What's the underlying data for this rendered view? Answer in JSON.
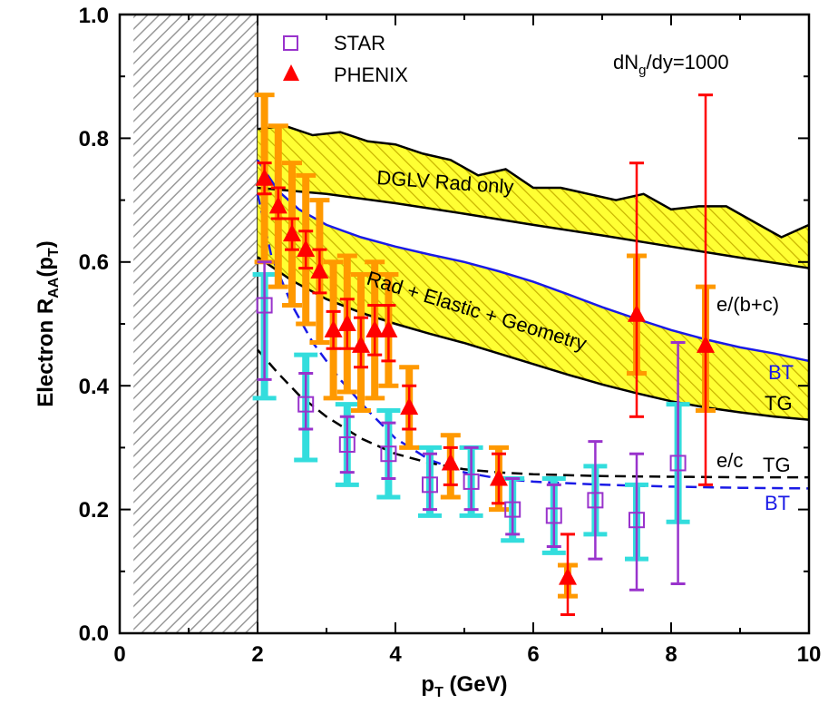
{
  "chart_data": {
    "type": "scatter",
    "xlabel": "p",
    "xlabel_sub": "T",
    "xlabel_unit": " (GeV)",
    "ylabel": "Electron R",
    "ylabel_sub": "AA",
    "ylabel_arg": "(p",
    "ylabel_arg_sub": "T",
    "ylabel_close": ")",
    "xlim": [
      0,
      10
    ],
    "ylim": [
      0,
      1.0
    ],
    "x_ticks": [
      "0",
      "2",
      "4",
      "6",
      "8",
      "10"
    ],
    "y_ticks": [
      "0.0",
      "0.2",
      "0.4",
      "0.6",
      "0.8",
      "1.0"
    ],
    "excluded_region": [
      0.2,
      2.0
    ],
    "legend": {
      "star": "STAR",
      "phenix": "PHENIX",
      "star_color": "#9933cc",
      "phenix_color": "#ff0000"
    },
    "annotations": {
      "density_main": "dN",
      "density_sub": "g",
      "density_rest": "/dy=1000",
      "dglv": "DGLV Rad only",
      "rad_elastic": "Rad + Elastic + Geometry",
      "e_bc": "e/(b+c)",
      "e_c": "e/c",
      "bt_upper": "BT",
      "tg_upper": "TG",
      "tg_lower": "TG",
      "bt_lower": "BT"
    },
    "colors": {
      "band_fill": "#ffff33",
      "band_hatch": "#c8b400",
      "blue": "#1a1ae6",
      "black": "#000000",
      "star_sys": "#33dddd",
      "phenix_sys": "#ff9900",
      "grey_hatch": "#999999"
    },
    "series": [
      {
        "name": "DGLV Rad only band upper",
        "x": [
          2.0,
          2.4,
          2.8,
          3.2,
          3.6,
          4.0,
          4.4,
          4.8,
          5.2,
          5.6,
          6.0,
          6.4,
          6.8,
          7.2,
          7.6,
          8.0,
          8.4,
          8.8,
          9.2,
          9.6,
          10.0
        ],
        "y": [
          0.815,
          0.82,
          0.805,
          0.81,
          0.795,
          0.79,
          0.775,
          0.765,
          0.74,
          0.75,
          0.72,
          0.72,
          0.71,
          0.7,
          0.71,
          0.685,
          0.69,
          0.69,
          0.665,
          0.64,
          0.66
        ]
      },
      {
        "name": "DGLV Rad only band lower",
        "x": [
          2.0,
          3.0,
          4.0,
          5.0,
          6.0,
          7.0,
          8.0,
          9.0,
          10.0
        ],
        "y": [
          0.72,
          0.71,
          0.695,
          0.678,
          0.66,
          0.643,
          0.625,
          0.607,
          0.59
        ]
      },
      {
        "name": "e/(b+c) BT",
        "x": [
          2.0,
          2.3,
          2.6,
          3.0,
          3.5,
          4.0,
          4.5,
          5.0,
          5.5,
          6.0,
          6.5,
          7.0,
          7.5,
          8.0,
          8.5,
          9.0,
          9.5,
          10.0
        ],
        "y": [
          0.765,
          0.715,
          0.685,
          0.66,
          0.64,
          0.625,
          0.612,
          0.6,
          0.585,
          0.568,
          0.548,
          0.527,
          0.508,
          0.49,
          0.475,
          0.462,
          0.452,
          0.44
        ]
      },
      {
        "name": "e/(b+c) TG",
        "x": [
          2.0,
          2.5,
          3.0,
          3.5,
          4.0,
          4.5,
          5.0,
          5.5,
          6.0,
          6.5,
          7.0,
          7.5,
          8.0,
          8.5,
          9.0,
          9.5,
          10.0
        ],
        "y": [
          0.608,
          0.57,
          0.54,
          0.518,
          0.5,
          0.484,
          0.469,
          0.452,
          0.435,
          0.418,
          0.402,
          0.388,
          0.375,
          0.365,
          0.357,
          0.35,
          0.345
        ]
      },
      {
        "name": "e/c BT",
        "x": [
          2.0,
          2.2,
          2.5,
          2.8,
          3.2,
          3.6,
          4.0,
          4.5,
          5.0,
          5.5,
          6.0,
          7.0,
          8.0,
          9.0,
          10.0
        ],
        "y": [
          0.71,
          0.61,
          0.53,
          0.47,
          0.41,
          0.36,
          0.315,
          0.28,
          0.26,
          0.25,
          0.245,
          0.24,
          0.237,
          0.235,
          0.234
        ]
      },
      {
        "name": "e/c TG",
        "x": [
          2.0,
          2.3,
          2.6,
          3.0,
          3.5,
          4.0,
          4.5,
          5.0,
          5.5,
          6.0,
          7.0,
          8.0,
          9.0,
          10.0
        ],
        "y": [
          0.458,
          0.42,
          0.385,
          0.35,
          0.315,
          0.29,
          0.275,
          0.265,
          0.26,
          0.257,
          0.254,
          0.253,
          0.252,
          0.252
        ]
      }
    ],
    "star": [
      {
        "x": 2.1,
        "y": 0.53,
        "stat": [
          0.41,
          0.6
        ],
        "sys": [
          0.38,
          0.58
        ]
      },
      {
        "x": 2.7,
        "y": 0.37,
        "stat": [
          0.33,
          0.42
        ],
        "sys": [
          0.28,
          0.45
        ]
      },
      {
        "x": 3.3,
        "y": 0.305,
        "stat": [
          0.26,
          0.35
        ],
        "sys": [
          0.24,
          0.37
        ]
      },
      {
        "x": 3.9,
        "y": 0.29,
        "stat": [
          0.25,
          0.34
        ],
        "sys": [
          0.22,
          0.36
        ]
      },
      {
        "x": 4.5,
        "y": 0.24,
        "stat": [
          0.2,
          0.29
        ],
        "sys": [
          0.19,
          0.3
        ]
      },
      {
        "x": 5.1,
        "y": 0.245,
        "stat": [
          0.2,
          0.3
        ],
        "sys": [
          0.19,
          0.3
        ]
      },
      {
        "x": 5.7,
        "y": 0.2,
        "stat": [
          0.16,
          0.25
        ],
        "sys": [
          0.15,
          0.25
        ]
      },
      {
        "x": 6.3,
        "y": 0.19,
        "stat": [
          0.14,
          0.24
        ],
        "sys": [
          0.13,
          0.25
        ]
      },
      {
        "x": 6.9,
        "y": 0.215,
        "stat": [
          0.12,
          0.31
        ],
        "sys": [
          0.16,
          0.27
        ]
      },
      {
        "x": 7.5,
        "y": 0.183,
        "stat": [
          0.07,
          0.29
        ],
        "sys": [
          0.12,
          0.24
        ]
      },
      {
        "x": 8.1,
        "y": 0.275,
        "stat": [
          0.08,
          0.47
        ],
        "sys": [
          0.18,
          0.37
        ]
      }
    ],
    "phenix": [
      {
        "x": 2.1,
        "y": 0.735,
        "stat": [
          0.71,
          0.76
        ],
        "sys": [
          0.6,
          0.87
        ]
      },
      {
        "x": 2.3,
        "y": 0.69,
        "stat": [
          0.67,
          0.72
        ],
        "sys": [
          0.56,
          0.82
        ]
      },
      {
        "x": 2.5,
        "y": 0.645,
        "stat": [
          0.62,
          0.67
        ],
        "sys": [
          0.53,
          0.76
        ]
      },
      {
        "x": 2.7,
        "y": 0.62,
        "stat": [
          0.59,
          0.65
        ],
        "sys": [
          0.5,
          0.74
        ]
      },
      {
        "x": 2.9,
        "y": 0.585,
        "stat": [
          0.55,
          0.62
        ],
        "sys": [
          0.47,
          0.7
        ]
      },
      {
        "x": 3.1,
        "y": 0.49,
        "stat": [
          0.46,
          0.52
        ],
        "sys": [
          0.38,
          0.6
        ]
      },
      {
        "x": 3.3,
        "y": 0.5,
        "stat": [
          0.46,
          0.54
        ],
        "sys": [
          0.39,
          0.61
        ]
      },
      {
        "x": 3.5,
        "y": 0.465,
        "stat": [
          0.43,
          0.51
        ],
        "sys": [
          0.36,
          0.58
        ]
      },
      {
        "x": 3.7,
        "y": 0.49,
        "stat": [
          0.45,
          0.53
        ],
        "sys": [
          0.38,
          0.6
        ]
      },
      {
        "x": 3.9,
        "y": 0.49,
        "stat": [
          0.44,
          0.53
        ],
        "sys": [
          0.4,
          0.58
        ]
      },
      {
        "x": 4.2,
        "y": 0.365,
        "stat": [
          0.33,
          0.4
        ],
        "sys": [
          0.3,
          0.43
        ]
      },
      {
        "x": 4.8,
        "y": 0.275,
        "stat": [
          0.24,
          0.3
        ],
        "sys": [
          0.22,
          0.32
        ]
      },
      {
        "x": 5.5,
        "y": 0.25,
        "stat": [
          0.21,
          0.29
        ],
        "sys": [
          0.2,
          0.3
        ]
      },
      {
        "x": 6.5,
        "y": 0.09,
        "stat": [
          0.03,
          0.16
        ],
        "sys": [
          0.06,
          0.11
        ]
      },
      {
        "x": 7.5,
        "y": 0.515,
        "stat": [
          0.35,
          0.76
        ],
        "sys": [
          0.42,
          0.61
        ]
      },
      {
        "x": 8.5,
        "y": 0.465,
        "stat": [
          0.24,
          0.87
        ],
        "sys": [
          0.36,
          0.56
        ]
      }
    ]
  }
}
